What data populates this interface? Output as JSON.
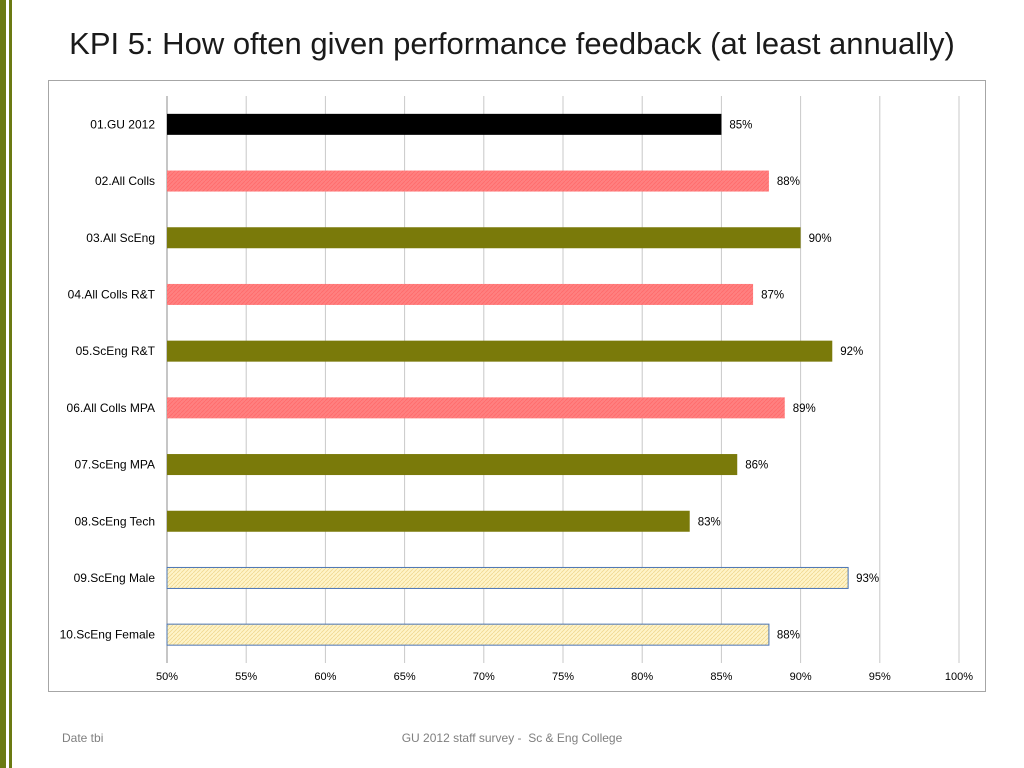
{
  "slide": {
    "title": "KPI 5: How often given performance feedback (at least annually)",
    "footer_left": "Date tbi",
    "footer_center": "GU 2012 staff survey -  Sc & Eng College"
  },
  "chart_data": {
    "type": "bar",
    "orientation": "horizontal",
    "title": "",
    "xlabel": "",
    "ylabel": "",
    "xlim": [
      0.5,
      1.0
    ],
    "x_ticks": [
      "50%",
      "55%",
      "60%",
      "65%",
      "70%",
      "75%",
      "80%",
      "85%",
      "90%",
      "95%",
      "100%"
    ],
    "grid": true,
    "legend": "none",
    "categories": [
      "01.GU 2012",
      "02.All Colls",
      "03.All ScEng",
      "04.All Colls R&T",
      "05.ScEng R&T",
      "06.All Colls MPA",
      "07.ScEng MPA",
      "08.ScEng Tech",
      "09.ScEng Male",
      "10.ScEng Female"
    ],
    "values": [
      0.85,
      0.88,
      0.9,
      0.87,
      0.92,
      0.89,
      0.86,
      0.83,
      0.93,
      0.88
    ],
    "value_labels": [
      "85%",
      "88%",
      "90%",
      "87%",
      "92%",
      "89%",
      "86%",
      "83%",
      "93%",
      "88%"
    ],
    "bar_styles": [
      "black",
      "pink",
      "olive",
      "pink",
      "olive",
      "pink",
      "olive",
      "olive",
      "cream",
      "cream"
    ],
    "colors": {
      "black": "#000000",
      "pink": "#ff8080",
      "olive": "#7a7a0a",
      "cream": "#fff2c0",
      "cream_border": "#4a74b4",
      "grid": "#c8c8c8"
    }
  }
}
